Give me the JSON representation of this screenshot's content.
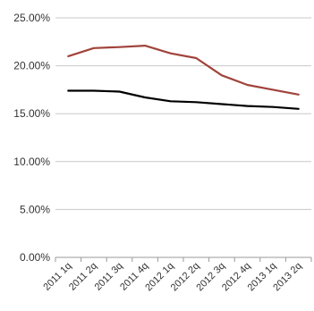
{
  "chart_data": {
    "type": "line",
    "title": "",
    "xlabel": "",
    "ylabel": "",
    "categories": [
      "2011 1q",
      "2011 2q",
      "2011 3q",
      "2011 4q",
      "2012 1q",
      "2012 2q",
      "2012 3q",
      "2012 4q",
      "2013 1q",
      "2013 2q"
    ],
    "series": [
      {
        "color": "#a0433b",
        "values": [
          21.0,
          21.85,
          21.95,
          22.1,
          21.3,
          20.8,
          19.0,
          18.0,
          17.5,
          17.0
        ]
      },
      {
        "color": "#000000",
        "values": [
          17.4,
          17.4,
          17.3,
          16.7,
          16.3,
          16.2,
          16.0,
          15.8,
          15.7,
          15.5
        ]
      }
    ],
    "ylim": [
      0,
      25
    ],
    "yticks": [
      0,
      5,
      10,
      15,
      20,
      25
    ],
    "ytick_labels": [
      "0.00%",
      "5.00%",
      "10.00%",
      "15.00%",
      "20.00%",
      "25.00%"
    ],
    "grid": true,
    "legend": "none"
  }
}
